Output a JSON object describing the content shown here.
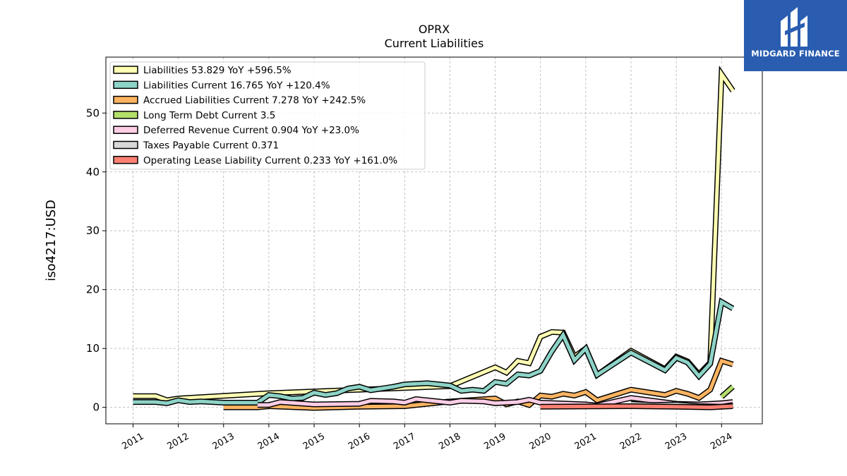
{
  "chart_data": {
    "type": "line",
    "title": "OPRX",
    "subtitle": "Current  Liabilities",
    "xlabel": "",
    "ylabel": "iso4217:USD",
    "xlim": [
      2010.4,
      2024.9
    ],
    "ylim": [
      -2.8,
      59.5
    ],
    "yticks": [
      0,
      10,
      20,
      30,
      40,
      50
    ],
    "xticks": [
      "2011",
      "2012",
      "2013",
      "2014",
      "2015",
      "2016",
      "2017",
      "2018",
      "2019",
      "2020",
      "2021",
      "2022",
      "2023",
      "2024"
    ],
    "grid": true,
    "legend_position": "top-left",
    "series": [
      {
        "name": "Liabilities  53.829 YoY +596.5%",
        "color": "#ffffb3",
        "points": [
          [
            2011.0,
            1.9
          ],
          [
            2011.5,
            1.9
          ],
          [
            2011.75,
            1.2
          ],
          [
            2012.0,
            1.5
          ],
          [
            2014.0,
            2.4
          ],
          [
            2015.0,
            2.7
          ],
          [
            2016.0,
            3.0
          ],
          [
            2017.0,
            3.3
          ],
          [
            2018.0,
            3.6
          ],
          [
            2019.0,
            6.8
          ],
          [
            2019.25,
            5.9
          ],
          [
            2019.5,
            7.9
          ],
          [
            2019.75,
            7.5
          ],
          [
            2020.0,
            12.0
          ],
          [
            2020.25,
            12.8
          ],
          [
            2020.5,
            12.7
          ],
          [
            2020.75,
            8.6
          ],
          [
            2021.0,
            10.0
          ],
          [
            2021.25,
            5.5
          ],
          [
            2022.0,
            9.6
          ],
          [
            2022.75,
            6.5
          ],
          [
            2023.0,
            8.6
          ],
          [
            2023.25,
            7.8
          ],
          [
            2023.5,
            5.6
          ],
          [
            2023.75,
            7.6
          ],
          [
            2024.0,
            56.6
          ],
          [
            2024.25,
            53.8
          ]
        ]
      },
      {
        "name": "Liabilities Current  16.765 YoY +120.4%",
        "color": "#8dd3c7",
        "points": [
          [
            2011.0,
            0.9
          ],
          [
            2011.5,
            0.9
          ],
          [
            2011.75,
            0.7
          ],
          [
            2012.0,
            1.2
          ],
          [
            2012.25,
            0.9
          ],
          [
            2012.5,
            1.0
          ],
          [
            2012.75,
            0.9
          ],
          [
            2013.0,
            0.8
          ],
          [
            2013.75,
            0.8
          ],
          [
            2014.0,
            2.1
          ],
          [
            2014.25,
            1.9
          ],
          [
            2014.5,
            1.5
          ],
          [
            2014.75,
            1.6
          ],
          [
            2015.0,
            2.5
          ],
          [
            2015.25,
            2.1
          ],
          [
            2015.5,
            2.4
          ],
          [
            2015.75,
            3.2
          ],
          [
            2016.0,
            3.5
          ],
          [
            2016.25,
            2.9
          ],
          [
            2016.75,
            3.5
          ],
          [
            2017.0,
            3.9
          ],
          [
            2017.5,
            4.1
          ],
          [
            2018.0,
            3.7
          ],
          [
            2018.25,
            2.8
          ],
          [
            2018.5,
            3.0
          ],
          [
            2018.75,
            2.8
          ],
          [
            2019.0,
            4.3
          ],
          [
            2019.25,
            4.0
          ],
          [
            2019.5,
            5.6
          ],
          [
            2019.75,
            5.4
          ],
          [
            2020.0,
            6.2
          ],
          [
            2020.25,
            9.5
          ],
          [
            2020.5,
            12.3
          ],
          [
            2020.75,
            8.0
          ],
          [
            2021.0,
            10.0
          ],
          [
            2021.25,
            5.5
          ],
          [
            2022.0,
            9.3
          ],
          [
            2022.75,
            6.3
          ],
          [
            2023.0,
            8.4
          ],
          [
            2023.25,
            7.6
          ],
          [
            2023.5,
            5.3
          ],
          [
            2023.75,
            7.4
          ],
          [
            2024.0,
            17.9
          ],
          [
            2024.25,
            16.8
          ]
        ]
      },
      {
        "name": "Accrued Liabilities Current  7.278 YoY +242.5%",
        "color": "#fdb462",
        "points": [
          [
            2013.0,
            0.0
          ],
          [
            2013.75,
            0.0
          ],
          [
            2014.0,
            0.2
          ],
          [
            2015.0,
            -0.1
          ],
          [
            2016.0,
            0.1
          ],
          [
            2017.0,
            0.2
          ],
          [
            2018.0,
            1.0
          ],
          [
            2019.0,
            1.5
          ],
          [
            2019.25,
            0.5
          ],
          [
            2019.5,
            1.0
          ],
          [
            2019.75,
            0.4
          ],
          [
            2020.0,
            2.0
          ],
          [
            2020.25,
            1.8
          ],
          [
            2020.5,
            2.3
          ],
          [
            2020.75,
            2.0
          ],
          [
            2021.0,
            2.6
          ],
          [
            2021.25,
            1.2
          ],
          [
            2022.0,
            3.0
          ],
          [
            2022.75,
            2.1
          ],
          [
            2023.0,
            2.8
          ],
          [
            2023.25,
            2.3
          ],
          [
            2023.5,
            1.6
          ],
          [
            2023.75,
            3.0
          ],
          [
            2024.0,
            7.9
          ],
          [
            2024.25,
            7.3
          ]
        ]
      },
      {
        "name": "Long Term Debt Current  3.5",
        "color": "#b3de69",
        "points": [
          [
            2024.0,
            1.8
          ],
          [
            2024.25,
            3.5
          ]
        ]
      },
      {
        "name": "Deferred Revenue Current  0.904 YoY +23.0%",
        "color": "#fccde5",
        "points": [
          [
            2013.75,
            0.4
          ],
          [
            2014.0,
            0.4
          ],
          [
            2014.25,
            0.9
          ],
          [
            2015.0,
            0.5
          ],
          [
            2016.0,
            0.6
          ],
          [
            2016.25,
            1.1
          ],
          [
            2016.75,
            1.0
          ],
          [
            2017.0,
            0.8
          ],
          [
            2017.25,
            1.4
          ],
          [
            2018.0,
            0.8
          ],
          [
            2018.25,
            1.1
          ],
          [
            2018.75,
            1.0
          ],
          [
            2019.0,
            0.7
          ],
          [
            2019.5,
            0.9
          ],
          [
            2019.75,
            1.3
          ],
          [
            2020.0,
            0.8
          ],
          [
            2021.0,
            0.5
          ],
          [
            2021.25,
            0.3
          ],
          [
            2022.0,
            1.6
          ],
          [
            2023.0,
            0.6
          ],
          [
            2023.5,
            0.5
          ],
          [
            2024.0,
            0.7
          ],
          [
            2024.25,
            0.9
          ]
        ]
      },
      {
        "name": "Taxes Payable Current  0.371",
        "color": "#d9d9d9",
        "points": [
          [
            2022.0,
            0.6
          ],
          [
            2022.5,
            0.4
          ],
          [
            2023.0,
            0.5
          ],
          [
            2023.5,
            0.2
          ],
          [
            2024.0,
            0.1
          ],
          [
            2024.25,
            0.4
          ]
        ]
      },
      {
        "name": "Operating Lease Liability Current  0.233 YoY +161.0%",
        "color": "#fb8072",
        "points": [
          [
            2020.0,
            0.1
          ],
          [
            2022.0,
            0.2
          ],
          [
            2023.0,
            0.1
          ],
          [
            2023.75,
            0.0
          ],
          [
            2024.0,
            0.1
          ],
          [
            2024.25,
            0.2
          ]
        ]
      }
    ]
  },
  "logo": {
    "text": "MIDGARD FINANCE",
    "color": "#2a5db0"
  }
}
